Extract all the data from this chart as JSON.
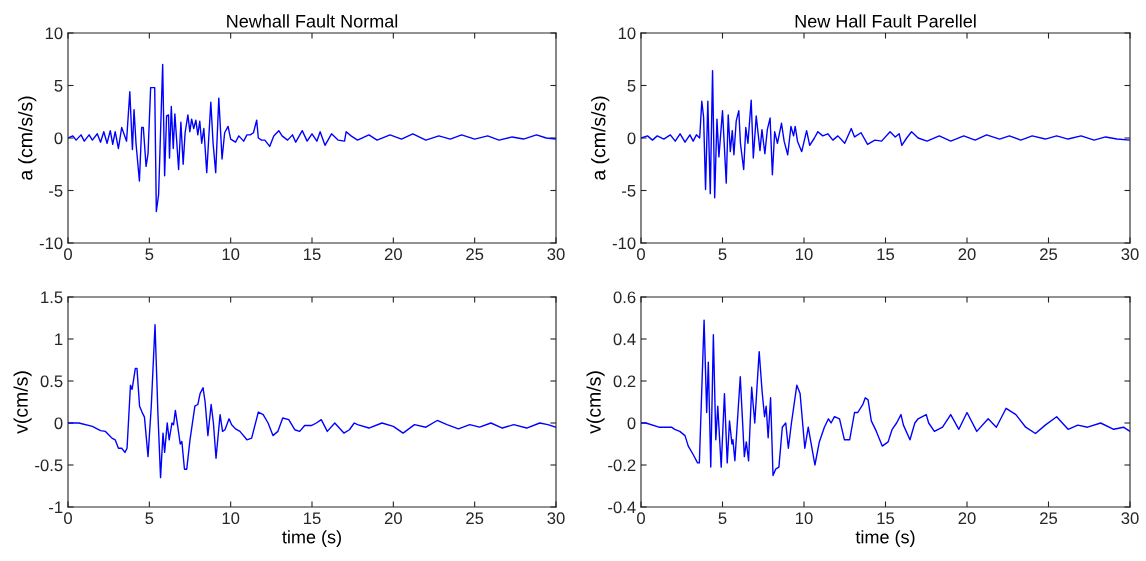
{
  "chart_data": [
    {
      "type": "line",
      "title": "Newhall Fault Normal",
      "ylabel": "a (cm/s/s)",
      "xlim": [
        0,
        30
      ],
      "xticks": [
        0,
        5,
        10,
        15,
        20,
        25,
        30
      ],
      "ylim": [
        -10,
        10
      ],
      "yticks": [
        -10,
        -5,
        0,
        5,
        10
      ],
      "series": [
        {
          "color": "#0000ff",
          "x": [
            0,
            0.3,
            0.5,
            0.8,
            1.0,
            1.3,
            1.5,
            1.8,
            2.0,
            2.2,
            2.4,
            2.6,
            2.75,
            2.9,
            3.1,
            3.3,
            3.6,
            3.8,
            3.96,
            4.06,
            4.18,
            4.39,
            4.53,
            4.63,
            4.8,
            4.92,
            5.08,
            5.33,
            5.43,
            5.57,
            5.82,
            5.94,
            6.06,
            6.18,
            6.24,
            6.35,
            6.47,
            6.57,
            6.67,
            6.8,
            6.94,
            7.08,
            7.2,
            7.37,
            7.49,
            7.6,
            7.73,
            7.86,
            7.98,
            8.1,
            8.22,
            8.35,
            8.53,
            8.78,
            8.92,
            9.08,
            9.27,
            9.47,
            9.63,
            9.84,
            10.0,
            10.3,
            10.5,
            10.8,
            11.0,
            11.2,
            11.4,
            11.6,
            11.7,
            11.9,
            12.1,
            12.4,
            12.65,
            12.96,
            13.16,
            13.5,
            13.8,
            14.0,
            14.4,
            14.7,
            15.0,
            15.3,
            15.5,
            15.8,
            16.2,
            16.6,
            17.0,
            17.1,
            17.4,
            17.8,
            18.5,
            19.0,
            19.8,
            20.5,
            21.2,
            22.0,
            22.8,
            23.5,
            24.2,
            25.0,
            25.8,
            26.5,
            27.3,
            28.0,
            28.8,
            29.4,
            30.0
          ],
          "values": [
            0,
            0.2,
            -0.2,
            0.3,
            -0.3,
            0.3,
            -0.2,
            0.4,
            -0.4,
            0.6,
            -0.5,
            0.7,
            -0.6,
            0.6,
            -1.0,
            1.0,
            -0.3,
            4.4,
            -1.1,
            2.7,
            -0.5,
            -4.1,
            1.0,
            1.0,
            -2.7,
            -1.5,
            4.8,
            4.8,
            -7.0,
            -5.4,
            7.0,
            -3.6,
            2.1,
            2.2,
            -1.9,
            3.0,
            -1.0,
            2.3,
            0,
            -3.0,
            1.5,
            -2.5,
            0.5,
            2.2,
            0.6,
            1.8,
            0.9,
            1.7,
            0.3,
            1.6,
            -0.5,
            0.9,
            -3.3,
            3.4,
            -0.5,
            -3.3,
            3.8,
            -2.0,
            0.5,
            1.1,
            -0.1,
            -0.4,
            0.2,
            -0.3,
            0.3,
            0.3,
            0.5,
            1.7,
            0,
            -0.2,
            -0.2,
            -0.8,
            0.2,
            0.7,
            0.2,
            -0.2,
            0.3,
            -0.4,
            0.7,
            -0.3,
            0.4,
            -0.3,
            0.6,
            -0.7,
            0.4,
            -0.2,
            -0.3,
            0.6,
            0.2,
            -0.2,
            0.3,
            -0.2,
            0.3,
            -0.1,
            0.4,
            -0.2,
            0.2,
            -0.1,
            0.3,
            -0.1,
            0.2,
            -0.2,
            0.1,
            -0.1,
            0.3,
            0,
            -0.1
          ]
        }
      ]
    },
    {
      "type": "line",
      "title": "New Hall Fault Parellel",
      "ylabel": "a (cm/s/s)",
      "xlim": [
        0,
        30
      ],
      "xticks": [
        0,
        5,
        10,
        15,
        20,
        25,
        30
      ],
      "ylim": [
        -10,
        10
      ],
      "yticks": [
        -10,
        -5,
        0,
        5,
        10
      ],
      "series": [
        {
          "color": "#0000ff",
          "x": [
            0,
            0.4,
            0.7,
            1.0,
            1.4,
            1.8,
            2.1,
            2.4,
            2.7,
            3.0,
            3.2,
            3.4,
            3.6,
            3.73,
            3.84,
            3.96,
            4.1,
            4.25,
            4.39,
            4.52,
            4.66,
            4.78,
            5.0,
            5.23,
            5.35,
            5.48,
            5.6,
            5.7,
            5.84,
            6.0,
            6.1,
            6.3,
            6.43,
            6.56,
            6.76,
            6.89,
            7.07,
            7.18,
            7.3,
            7.42,
            7.6,
            7.75,
            7.92,
            8.06,
            8.2,
            8.37,
            8.62,
            8.78,
            9.0,
            9.2,
            9.36,
            9.46,
            9.6,
            9.86,
            10.16,
            10.35,
            10.64,
            10.85,
            11.15,
            11.46,
            11.77,
            12.08,
            12.5,
            12.9,
            13.1,
            13.5,
            13.9,
            14.35,
            14.76,
            15.28,
            15.6,
            15.84,
            16.0,
            16.3,
            16.6,
            17.0,
            17.55,
            18.3,
            19.0,
            19.8,
            20.5,
            21.2,
            22.0,
            22.6,
            23.3,
            24.0,
            24.8,
            25.5,
            26.2,
            27.0,
            27.8,
            28.5,
            29.2,
            30.0
          ],
          "values": [
            0,
            0.2,
            -0.2,
            0.2,
            -0.1,
            0.3,
            -0.3,
            0.4,
            -0.4,
            0.3,
            -0.3,
            0.3,
            0,
            3.5,
            2.0,
            -4.9,
            3.5,
            -5.3,
            6.4,
            -5.7,
            1.8,
            -1.8,
            2.6,
            -4.3,
            2.2,
            -1.3,
            0.7,
            -1.6,
            1.6,
            2.6,
            -0.5,
            -3.0,
            1.0,
            -0.5,
            3.6,
            -1.9,
            2.1,
            0.5,
            -1.2,
            0.8,
            -1.5,
            0.8,
            1.9,
            -3.5,
            0.6,
            -0.5,
            1.4,
            -0.3,
            -1.6,
            1.1,
            0.2,
            1.1,
            -0.3,
            -1.3,
            0.7,
            -0.7,
            0,
            0.6,
            0.2,
            0.4,
            -0.2,
            0.2,
            -0.5,
            0.9,
            0.1,
            0.5,
            -0.6,
            -0.2,
            -0.3,
            0.6,
            0.1,
            0.4,
            -0.7,
            0,
            0.6,
            0,
            -0.3,
            0.2,
            -0.3,
            0.2,
            -0.2,
            0.3,
            -0.1,
            0.2,
            -0.2,
            0.2,
            -0.1,
            0.2,
            -0.1,
            0.2,
            -0.2,
            0.1,
            -0.1,
            -0.2
          ]
        }
      ]
    },
    {
      "type": "line",
      "xlabel": "time (s)",
      "ylabel": "v(cm/s)",
      "xlim": [
        0,
        30
      ],
      "xticks": [
        0,
        5,
        10,
        15,
        20,
        25,
        30
      ],
      "ylim": [
        -1,
        1.5
      ],
      "yticks": [
        -1,
        -0.5,
        0,
        0.5,
        1,
        1.5
      ],
      "series": [
        {
          "color": "#0000ff",
          "x": [
            0,
            0.67,
            1.5,
            2.0,
            2.3,
            2.5,
            2.7,
            2.9,
            3.1,
            3.3,
            3.5,
            3.63,
            3.84,
            3.94,
            4.14,
            4.24,
            4.4,
            4.55,
            4.7,
            4.92,
            5.12,
            5.35,
            5.53,
            5.69,
            5.84,
            5.94,
            6.1,
            6.22,
            6.39,
            6.49,
            6.6,
            6.73,
            6.9,
            7.0,
            7.16,
            7.3,
            7.5,
            7.8,
            7.98,
            8.12,
            8.3,
            8.43,
            8.6,
            8.8,
            8.94,
            9.1,
            9.35,
            9.5,
            9.65,
            9.9,
            10.06,
            10.3,
            10.57,
            11.0,
            11.29,
            11.7,
            12.0,
            12.3,
            12.6,
            12.9,
            13.2,
            13.57,
            13.94,
            14.24,
            14.55,
            14.96,
            15.27,
            15.57,
            15.94,
            16.4,
            16.96,
            17.3,
            17.6,
            17.8,
            18.5,
            19.3,
            20.0,
            20.6,
            21.3,
            22.0,
            22.7,
            23.3,
            24.0,
            24.7,
            25.3,
            26.0,
            26.7,
            27.4,
            28.2,
            29.0,
            29.5,
            30.0
          ],
          "values": [
            0,
            0,
            -0.04,
            -0.09,
            -0.1,
            -0.14,
            -0.18,
            -0.2,
            -0.3,
            -0.3,
            -0.35,
            -0.3,
            0.45,
            0.4,
            0.65,
            0.65,
            0.2,
            0.13,
            0.07,
            -0.4,
            0.2,
            1.17,
            0.1,
            -0.65,
            -0.12,
            -0.35,
            0.0,
            -0.2,
            0.0,
            -0.02,
            0.15,
            -0.02,
            -0.25,
            -0.22,
            -0.55,
            -0.55,
            -0.2,
            0.2,
            0.22,
            0.35,
            0.42,
            0.25,
            -0.15,
            0.22,
            0.0,
            -0.42,
            0.1,
            -0.1,
            -0.08,
            0.05,
            -0.02,
            -0.07,
            -0.1,
            -0.2,
            -0.18,
            0.13,
            0.1,
            0.0,
            -0.15,
            -0.1,
            0.06,
            0.04,
            -0.08,
            -0.1,
            -0.03,
            -0.03,
            0.0,
            0.04,
            -0.1,
            0.0,
            -0.12,
            -0.08,
            0.0,
            -0.02,
            -0.06,
            0.0,
            -0.04,
            -0.12,
            -0.02,
            -0.05,
            0.03,
            -0.02,
            -0.07,
            -0.02,
            -0.05,
            0.0,
            -0.06,
            -0.02,
            -0.06,
            0.0,
            -0.02,
            -0.05
          ]
        }
      ]
    },
    {
      "type": "line",
      "xlabel": "time (s)",
      "ylabel": "v(cm/s)",
      "xlim": [
        0,
        30
      ],
      "xticks": [
        0,
        5,
        10,
        15,
        20,
        25,
        30
      ],
      "ylim": [
        -0.4,
        0.6
      ],
      "yticks": [
        -0.4,
        -0.2,
        0,
        0.2,
        0.4,
        0.6
      ],
      "series": [
        {
          "color": "#0000ff",
          "x": [
            0,
            0.3,
            1.1,
            1.87,
            2.07,
            2.38,
            2.7,
            2.9,
            3.2,
            3.47,
            3.58,
            3.87,
            4.03,
            4.13,
            4.28,
            4.44,
            4.59,
            4.71,
            4.92,
            5.12,
            5.29,
            5.43,
            5.58,
            5.64,
            5.76,
            6.09,
            6.34,
            6.46,
            6.6,
            6.79,
            6.98,
            7.25,
            7.43,
            7.58,
            7.68,
            7.8,
            7.95,
            8.1,
            8.26,
            8.46,
            8.67,
            8.88,
            9.04,
            9.23,
            9.56,
            9.76,
            10.05,
            10.26,
            10.67,
            10.94,
            11.25,
            11.5,
            11.66,
            11.87,
            12.18,
            12.48,
            12.8,
            13.1,
            13.3,
            13.62,
            13.76,
            13.93,
            14.13,
            14.44,
            14.8,
            15.16,
            15.41,
            15.68,
            15.95,
            16.1,
            16.5,
            16.8,
            17.0,
            17.5,
            17.65,
            18.0,
            18.5,
            19.0,
            19.5,
            20.0,
            20.6,
            21.3,
            21.8,
            22.4,
            23.0,
            23.6,
            24.2,
            24.8,
            25.5,
            26.2,
            26.8,
            27.4,
            28.2,
            29.0,
            29.6,
            30.0
          ],
          "values": [
            0,
            0.0,
            -0.02,
            -0.02,
            -0.03,
            -0.04,
            -0.06,
            -0.11,
            -0.15,
            -0.19,
            -0.19,
            0.49,
            0.05,
            0.29,
            -0.21,
            0.42,
            -0.08,
            0.08,
            -0.21,
            0.14,
            -0.19,
            0.01,
            -0.1,
            -0.08,
            -0.18,
            0.22,
            -0.16,
            -0.09,
            -0.18,
            0.17,
            0.0,
            0.34,
            0.15,
            0.03,
            0.08,
            -0.07,
            0.12,
            -0.25,
            -0.22,
            -0.21,
            -0.02,
            0.0,
            -0.12,
            0.0,
            0.18,
            0.14,
            -0.12,
            -0.02,
            -0.2,
            -0.09,
            -0.02,
            0.02,
            0.0,
            0.03,
            0.02,
            -0.08,
            -0.08,
            0.05,
            0.05,
            0.09,
            0.12,
            0.11,
            0.01,
            -0.04,
            -0.11,
            -0.09,
            -0.03,
            0.0,
            0.04,
            -0.01,
            -0.08,
            0.0,
            0.02,
            0.04,
            0.0,
            -0.04,
            -0.02,
            0.04,
            -0.03,
            0.05,
            -0.04,
            0.02,
            -0.02,
            0.07,
            0.04,
            -0.02,
            -0.05,
            -0.01,
            0.03,
            -0.03,
            -0.01,
            -0.02,
            0.0,
            -0.03,
            -0.02,
            -0.04
          ]
        }
      ]
    }
  ]
}
